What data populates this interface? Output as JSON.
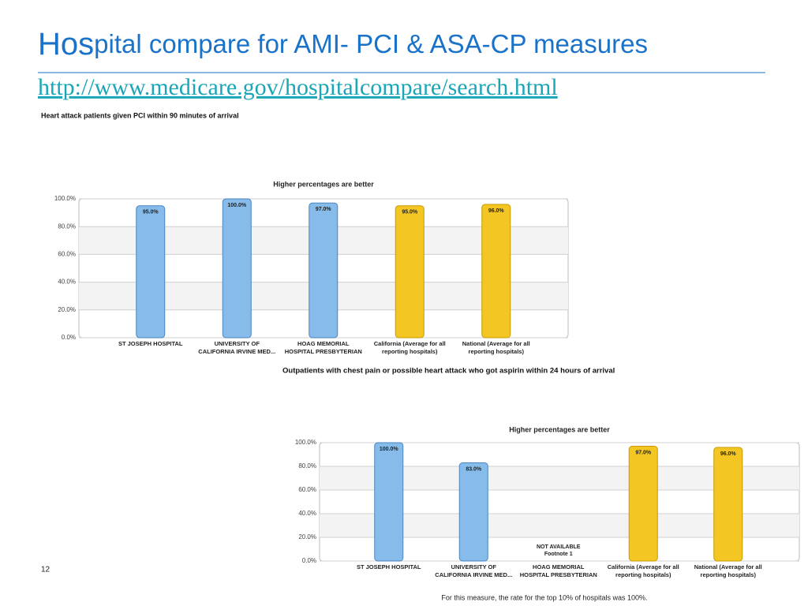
{
  "slide": {
    "title_lead": "Hos",
    "title_rest": "pital compare for AMI- PCI  & ASA-CP measures",
    "url": "http://www.medicare.gov/hospitalcompare/search.html",
    "heading_1": "Heart attack patients given PCI within 90 minutes of arrival",
    "heading_2": "Outpatients with chest pain or possible heart attack who got aspirin within 24 hours of arrival",
    "footnote": "For this measure, the rate for the top 10% of hospitals was 100%.",
    "page_number": "12"
  },
  "chart_data": [
    {
      "type": "bar",
      "title": "Higher percentages are better",
      "categories": [
        [
          "ST JOSEPH HOSPITAL"
        ],
        [
          "UNIVERSITY OF",
          "CALIFORNIA IRVINE MED..."
        ],
        [
          "HOAG MEMORIAL",
          "HOSPITAL PRESBYTERIAN"
        ],
        [
          "California (Average for all",
          "reporting hospitals)"
        ],
        [
          "National (Average for all",
          "reporting hospitals)"
        ]
      ],
      "values": [
        95,
        100,
        97,
        95,
        96
      ],
      "value_labels": [
        "95.0%",
        "100.0%",
        "97.0%",
        "95.0%",
        "96.0%"
      ],
      "colors": [
        "#86bbea",
        "#86bbea",
        "#86bbea",
        "#f3c623",
        "#f3c623"
      ],
      "ylim": [
        0,
        100
      ],
      "yticks": [
        {
          "value": 0,
          "label": "0.0%"
        },
        {
          "value": 20,
          "label": "20.0%"
        },
        {
          "value": 40,
          "label": "40.0%"
        },
        {
          "value": 60,
          "label": "60.0%"
        },
        {
          "value": 80,
          "label": "80.0%"
        },
        {
          "value": 100,
          "label": "100.0%"
        }
      ],
      "grid": true
    },
    {
      "type": "bar",
      "title": "Higher percentages are better",
      "categories": [
        [
          "ST JOSEPH HOSPITAL"
        ],
        [
          "UNIVERSITY OF",
          "CALIFORNIA IRVINE MED..."
        ],
        [
          "HOAG MEMORIAL",
          "HOSPITAL PRESBYTERIAN"
        ],
        [
          "California (Average for all",
          "reporting hospitals)"
        ],
        [
          "National (Average for all",
          "reporting hospitals)"
        ]
      ],
      "values": [
        100,
        83,
        null,
        97,
        96
      ],
      "value_labels": [
        "100.0%",
        "83.0%",
        null,
        "97.0%",
        "96.0%"
      ],
      "colors": [
        "#86bbea",
        "#86bbea",
        "#86bbea",
        "#f3c623",
        "#f3c623"
      ],
      "missing_label": [
        "NOT AVAILABLE",
        "Footnote 1"
      ],
      "ylim": [
        0,
        100
      ],
      "yticks": [
        {
          "value": 0,
          "label": "0.0%"
        },
        {
          "value": 20,
          "label": "20.0%"
        },
        {
          "value": 40,
          "label": "40.0%"
        },
        {
          "value": 60,
          "label": "60.0%"
        },
        {
          "value": 80,
          "label": "80.0%"
        },
        {
          "value": 100,
          "label": "100.0%"
        }
      ],
      "grid": true
    }
  ]
}
